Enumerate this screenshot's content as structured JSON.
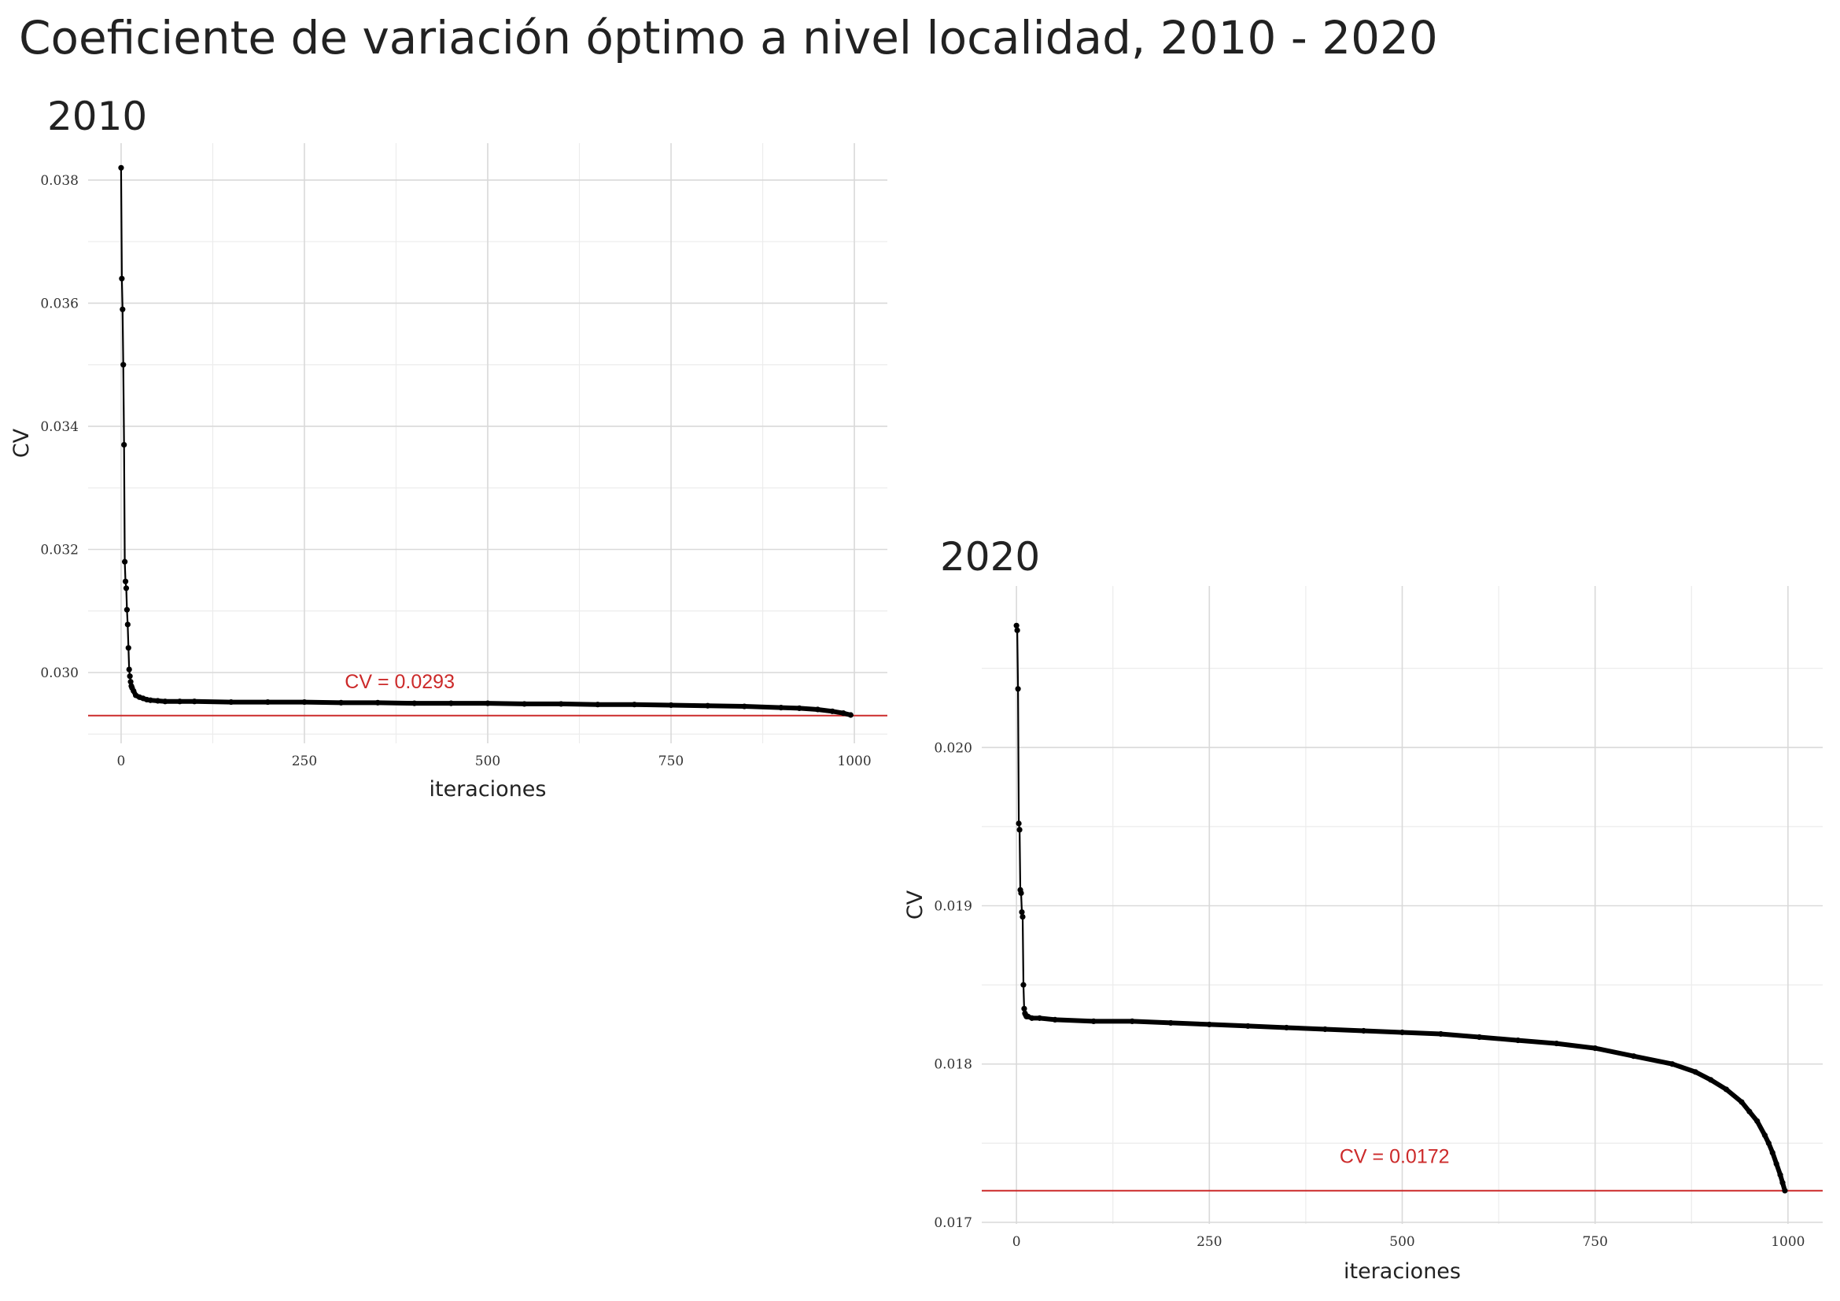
{
  "title": "Coeficiente de variación óptimo a nivel localidad, 2010 - 2020",
  "colors": {
    "line": "#000000",
    "reference": "#cc2a2a"
  },
  "chart_data": [
    {
      "type": "line",
      "subtitle": "2010",
      "xlabel": "iteraciones",
      "ylabel": "CV",
      "xlim": [
        -45,
        1045
      ],
      "ylim": [
        0.02885,
        0.0386
      ],
      "x_ticks": [
        0,
        250,
        500,
        750,
        1000
      ],
      "x_tick_labels": [
        "0",
        "250",
        "500",
        "750",
        "1000"
      ],
      "y_ticks": [
        0.03,
        0.032,
        0.034,
        0.036,
        0.038
      ],
      "y_tick_labels": [
        "0.030",
        "0.032",
        "0.034",
        "0.036",
        "0.038"
      ],
      "grid": true,
      "reference": {
        "value": 0.0293,
        "label": "CV = 0.0293",
        "label_x": 380
      },
      "series": [
        {
          "x": [
            0,
            1,
            2,
            3,
            4,
            5,
            6,
            7,
            8,
            9,
            10,
            11,
            12,
            13,
            14,
            15,
            17,
            20,
            25,
            30,
            35,
            40,
            50,
            60,
            80,
            100,
            150,
            200,
            250,
            300,
            350,
            400,
            450,
            500,
            550,
            600,
            650,
            700,
            750,
            800,
            850,
            900,
            925,
            950,
            970,
            985,
            995
          ],
          "y": [
            0.0382,
            0.0364,
            0.0359,
            0.035,
            0.0337,
            0.0318,
            0.03148,
            0.03137,
            0.03102,
            0.03078,
            0.0304,
            0.03005,
            0.02994,
            0.02985,
            0.02978,
            0.02975,
            0.0297,
            0.02963,
            0.0296,
            0.02958,
            0.02956,
            0.02955,
            0.02954,
            0.02953,
            0.02953,
            0.02953,
            0.02952,
            0.02952,
            0.02952,
            0.02951,
            0.02951,
            0.0295,
            0.0295,
            0.0295,
            0.02949,
            0.02949,
            0.02948,
            0.02948,
            0.02947,
            0.02946,
            0.02945,
            0.02943,
            0.02942,
            0.0294,
            0.02937,
            0.02934,
            0.02931
          ]
        }
      ]
    },
    {
      "type": "line",
      "subtitle": "2020",
      "xlabel": "iteraciones",
      "ylabel": "CV",
      "xlim": [
        -45,
        1045
      ],
      "ylim": [
        0.01699,
        0.02102
      ],
      "x_ticks": [
        0,
        250,
        500,
        750,
        1000
      ],
      "x_tick_labels": [
        "0",
        "250",
        "500",
        "750",
        "1000"
      ],
      "y_ticks": [
        0.017,
        0.018,
        0.019,
        0.02
      ],
      "y_tick_labels": [
        "0.017",
        "0.018",
        "0.019",
        "0.020"
      ],
      "grid": true,
      "reference": {
        "value": 0.0172,
        "label": "CV = 0.0172",
        "label_x": 490
      },
      "series": [
        {
          "x": [
            0,
            1,
            2,
            3,
            4,
            5,
            6,
            7,
            8,
            9,
            10,
            11,
            12,
            13,
            15,
            20,
            30,
            50,
            100,
            150,
            200,
            250,
            300,
            350,
            400,
            450,
            500,
            550,
            600,
            650,
            700,
            750,
            800,
            850,
            880,
            900,
            920,
            940,
            950,
            960,
            970,
            975,
            980,
            985,
            990,
            993,
            996
          ],
          "y": [
            0.02077,
            0.02074,
            0.02037,
            0.01952,
            0.01948,
            0.0191,
            0.01908,
            0.01896,
            0.01893,
            0.0185,
            0.01835,
            0.01832,
            0.01831,
            0.0183,
            0.0183,
            0.01829,
            0.01829,
            0.01828,
            0.01827,
            0.01827,
            0.01826,
            0.01825,
            0.01824,
            0.01823,
            0.01822,
            0.01821,
            0.0182,
            0.01819,
            0.01817,
            0.01815,
            0.01813,
            0.0181,
            0.01805,
            0.018,
            0.01795,
            0.0179,
            0.01784,
            0.01776,
            0.0177,
            0.01764,
            0.01755,
            0.0175,
            0.01744,
            0.01737,
            0.0173,
            0.01725,
            0.0172
          ]
        }
      ]
    }
  ]
}
